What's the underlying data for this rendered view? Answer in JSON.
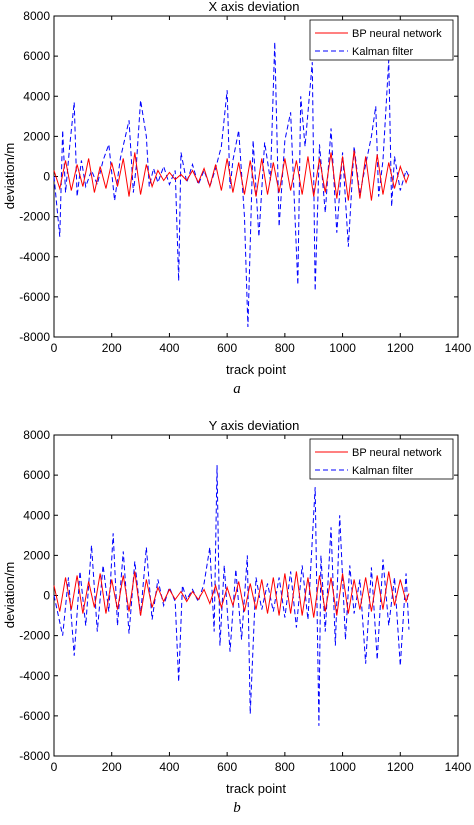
{
  "chart_data": [
    {
      "type": "line",
      "title": "X axis deviation",
      "xlabel": "track point",
      "ylabel": "deviation/m",
      "xlim": [
        0,
        1400
      ],
      "ylim": [
        -8000,
        8000
      ],
      "xticks": [
        "0",
        "200",
        "400",
        "600",
        "800",
        "1000",
        "1200",
        "1400"
      ],
      "yticks": [
        "8000",
        "6000",
        "4000",
        "2000",
        "0",
        "-2000",
        "-4000",
        "-6000",
        "-8000"
      ],
      "caption": "a",
      "legend_position": "top-right",
      "series": [
        {
          "name": "BP neural network",
          "color": "#ff0000",
          "dash": "solid",
          "x": [
            0,
            20,
            40,
            60,
            80,
            100,
            120,
            140,
            160,
            180,
            200,
            220,
            240,
            260,
            280,
            300,
            320,
            340,
            360,
            380,
            400,
            420,
            440,
            460,
            480,
            500,
            520,
            540,
            560,
            580,
            600,
            620,
            640,
            660,
            680,
            700,
            720,
            740,
            760,
            780,
            800,
            820,
            840,
            860,
            880,
            900,
            920,
            940,
            960,
            980,
            1000,
            1020,
            1040,
            1060,
            1080,
            1100,
            1120,
            1140,
            1160,
            1180,
            1200,
            1220,
            1230
          ],
          "y": [
            300,
            -600,
            800,
            -700,
            600,
            -500,
            900,
            -800,
            500,
            -600,
            700,
            -500,
            900,
            -1000,
            1200,
            -900,
            600,
            -500,
            300,
            -200,
            200,
            -150,
            100,
            -200,
            300,
            -300,
            400,
            -500,
            600,
            -700,
            900,
            -800,
            700,
            -900,
            800,
            -1000,
            900,
            -900,
            700,
            -800,
            900,
            -700,
            800,
            -900,
            1000,
            -1000,
            900,
            -800,
            1200,
            -1100,
            1000,
            -1200,
            1300,
            -1100,
            1000,
            -1200,
            1100,
            -900,
            700,
            -600,
            500,
            -300,
            100
          ]
        },
        {
          "name": "Kalman filter",
          "color": "#0000ff",
          "dash": "dashed",
          "x": [
            0,
            10,
            20,
            30,
            40,
            55,
            70,
            80,
            95,
            110,
            130,
            150,
            170,
            190,
            210,
            230,
            260,
            275,
            285,
            300,
            320,
            330,
            345,
            360,
            380,
            400,
            420,
            432,
            440,
            460,
            480,
            500,
            520,
            540,
            560,
            580,
            600,
            610,
            620,
            640,
            660,
            672,
            690,
            710,
            730,
            750,
            765,
            780,
            800,
            820,
            845,
            855,
            870,
            895,
            905,
            920,
            940,
            960,
            980,
            1000,
            1020,
            1040,
            1060,
            1080,
            1100,
            1115,
            1125,
            1140,
            1160,
            1170,
            1180,
            1200,
            1220,
            1230
          ],
          "y": [
            0,
            -1500,
            -3000,
            2300,
            -800,
            1600,
            3700,
            -1000,
            800,
            -500,
            300,
            -400,
            800,
            1600,
            -1200,
            900,
            2800,
            -800,
            500,
            3800,
            2000,
            -500,
            400,
            -300,
            500,
            -400,
            300,
            -5200,
            1200,
            -300,
            600,
            -400,
            300,
            -500,
            400,
            1500,
            4300,
            -600,
            800,
            2300,
            -2000,
            -7500,
            1800,
            -3000,
            1700,
            -200,
            6700,
            -2500,
            1800,
            3200,
            -5400,
            4000,
            1500,
            5700,
            -5700,
            1600,
            -1800,
            2400,
            -2800,
            1200,
            -3500,
            1500,
            -900,
            600,
            2000,
            3500,
            -1000,
            800,
            5800,
            -1500,
            1000,
            -700,
            300,
            0
          ]
        }
      ]
    },
    {
      "type": "line",
      "title": "Y axis deviation",
      "xlabel": "track point",
      "ylabel": "deviation/m",
      "xlim": [
        0,
        1400
      ],
      "ylim": [
        -8000,
        8000
      ],
      "xticks": [
        "0",
        "200",
        "400",
        "600",
        "800",
        "1000",
        "1200",
        "1400"
      ],
      "yticks": [
        "8000",
        "6000",
        "4000",
        "2000",
        "0",
        "-2000",
        "-4000",
        "-6000",
        "-8000"
      ],
      "caption": "b",
      "legend_position": "top-right",
      "series": [
        {
          "name": "BP neural network",
          "color": "#ff0000",
          "dash": "solid",
          "x": [
            0,
            20,
            40,
            60,
            80,
            100,
            120,
            140,
            160,
            180,
            200,
            220,
            240,
            260,
            280,
            300,
            320,
            340,
            360,
            380,
            400,
            420,
            440,
            460,
            480,
            500,
            520,
            540,
            560,
            580,
            600,
            620,
            640,
            660,
            680,
            700,
            720,
            740,
            760,
            780,
            800,
            820,
            840,
            860,
            880,
            900,
            920,
            940,
            960,
            980,
            1000,
            1020,
            1040,
            1060,
            1080,
            1100,
            1120,
            1140,
            1160,
            1180,
            1200,
            1220,
            1230
          ],
          "y": [
            500,
            -800,
            900,
            -700,
            1000,
            -900,
            700,
            -600,
            1100,
            -900,
            800,
            -700,
            1000,
            -800,
            1200,
            -1000,
            800,
            -600,
            400,
            -300,
            300,
            -200,
            200,
            -300,
            200,
            -200,
            300,
            -400,
            500,
            -600,
            400,
            -500,
            700,
            -800,
            600,
            -700,
            800,
            -900,
            900,
            -1000,
            1100,
            -900,
            1200,
            -1000,
            900,
            -1100,
            1000,
            -800,
            900,
            -1000,
            1100,
            -900,
            800,
            -700,
            900,
            -800,
            1000,
            -700,
            1200,
            -500,
            800,
            -300,
            100
          ]
        },
        {
          "name": "Kalman filter",
          "color": "#0000ff",
          "dash": "dashed",
          "x": [
            0,
            15,
            30,
            50,
            70,
            90,
            110,
            130,
            150,
            170,
            190,
            205,
            220,
            240,
            260,
            280,
            300,
            320,
            340,
            360,
            380,
            400,
            420,
            432,
            445,
            460,
            480,
            500,
            520,
            540,
            555,
            565,
            575,
            590,
            610,
            630,
            650,
            670,
            680,
            700,
            720,
            740,
            760,
            780,
            800,
            820,
            840,
            860,
            880,
            905,
            918,
            925,
            940,
            960,
            975,
            990,
            1010,
            1025,
            1040,
            1060,
            1080,
            1100,
            1120,
            1140,
            1160,
            1180,
            1200,
            1220,
            1230
          ],
          "y": [
            0,
            -1000,
            -2000,
            900,
            -3000,
            1200,
            -1500,
            2500,
            -1800,
            1500,
            -800,
            3100,
            -1500,
            2200,
            -1900,
            1700,
            -1000,
            2400,
            -1200,
            800,
            -500,
            400,
            -300,
            -4300,
            500,
            -200,
            300,
            -300,
            600,
            2400,
            -1800,
            6500,
            -2500,
            1500,
            -2800,
            1300,
            -2200,
            2000,
            -5900,
            900,
            -700,
            600,
            -800,
            900,
            -1100,
            1200,
            -1600,
            1500,
            -1200,
            5400,
            -6500,
            2000,
            -1800,
            3400,
            -2500,
            4000,
            -2200,
            1500,
            -900,
            800,
            -3400,
            1400,
            -3200,
            1800,
            -1500,
            900,
            -3500,
            1100,
            -1700
          ]
        }
      ]
    }
  ]
}
